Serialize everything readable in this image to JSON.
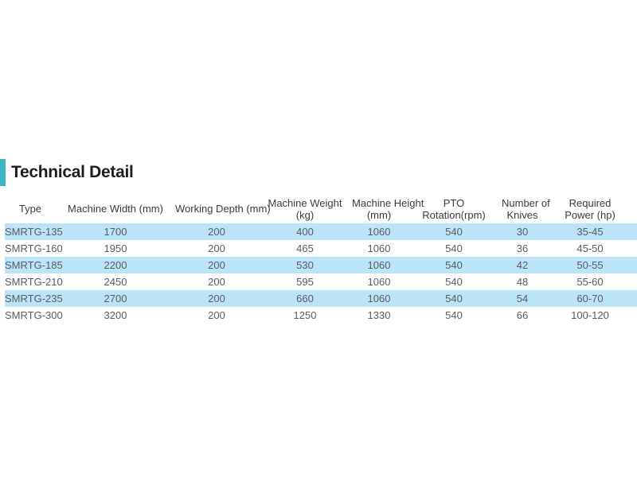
{
  "section": {
    "title": "Technical Detail"
  },
  "colors": {
    "accent": "#3bb7c4",
    "row_highlight": "#bce4f8",
    "header_text": "#3b3b3b",
    "body_text": "#595b5e"
  },
  "table": {
    "columns": [
      {
        "label": "Type",
        "lines": [
          "Type"
        ]
      },
      {
        "label": "Machine Width (mm)",
        "lines": [
          "Machine Width (mm)"
        ]
      },
      {
        "label": "Working Depth (mm)",
        "lines": [
          "Working Depth (mm)"
        ]
      },
      {
        "label": "Machine Weight (kg)",
        "lines": [
          "Machine Weight",
          "(kg)"
        ]
      },
      {
        "label": "Machine Height (mm)",
        "lines": [
          "Machine Height",
          "(mm)"
        ]
      },
      {
        "label": "PTO Rotation(rpm)",
        "lines": [
          "PTO",
          "Rotation(rpm)"
        ]
      },
      {
        "label": "Number of Knives",
        "lines": [
          "Number of",
          "Knives"
        ]
      },
      {
        "label": "Required Power (hp)",
        "lines": [
          "Required",
          "Power (hp)"
        ]
      }
    ],
    "rows": [
      [
        "SMRTG-135",
        "1700",
        "200",
        "400",
        "1060",
        "540",
        "30",
        "35-45"
      ],
      [
        "SMRTG-160",
        "1950",
        "200",
        "465",
        "1060",
        "540",
        "36",
        "45-50"
      ],
      [
        "SMRTG-185",
        "2200",
        "200",
        "530",
        "1060",
        "540",
        "42",
        "50-55"
      ],
      [
        "SMRTG-210",
        "2450",
        "200",
        "595",
        "1060",
        "540",
        "48",
        "55-60"
      ],
      [
        "SMRTG-235",
        "2700",
        "200",
        "660",
        "1060",
        "540",
        "54",
        "60-70"
      ],
      [
        "SMRTG-300",
        "3200",
        "200",
        "1250",
        "1330",
        "540",
        "66",
        "100-120"
      ]
    ]
  }
}
